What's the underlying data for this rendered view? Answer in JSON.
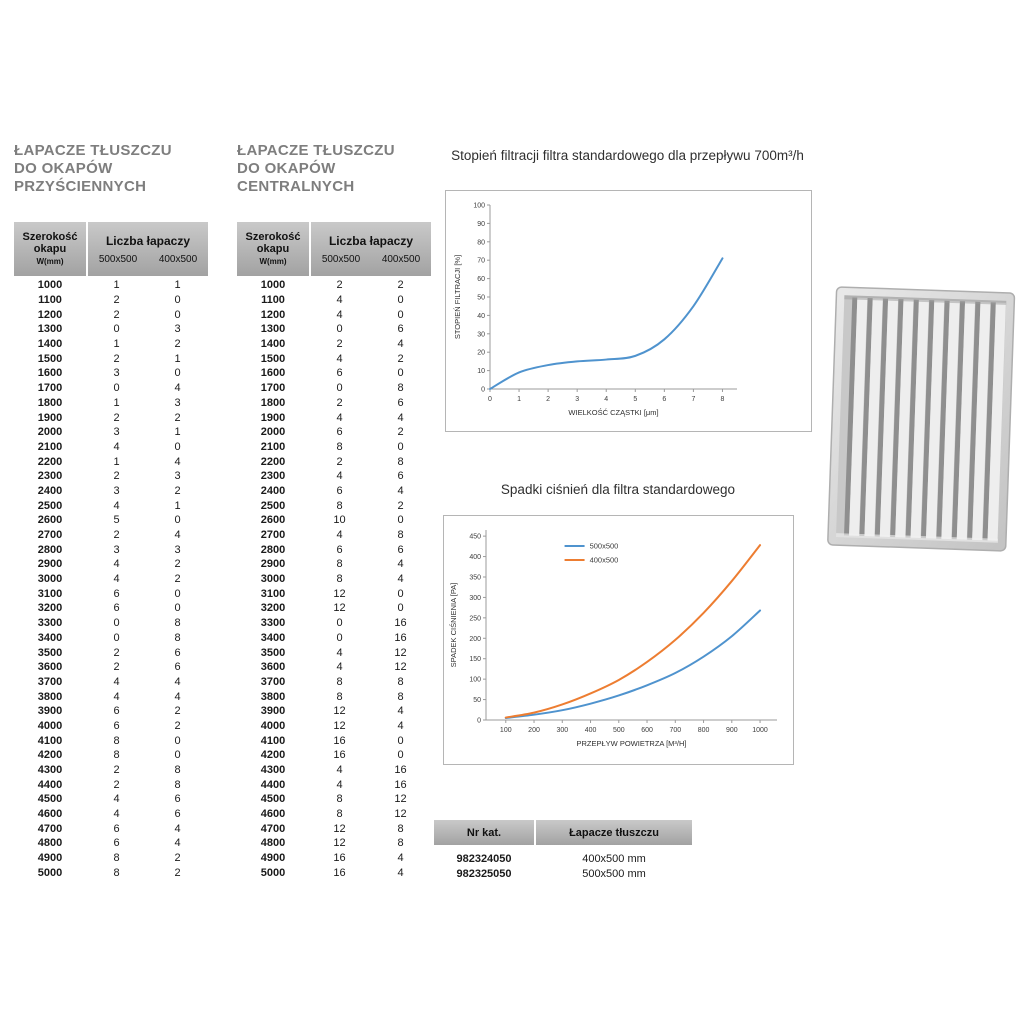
{
  "colors": {
    "blue": "#4f93ce",
    "orange": "#ed7d31",
    "header_grey_top": "#c9c9c9",
    "header_grey_bottom": "#a2a2a2",
    "title_grey": "#7e7e7e"
  },
  "tables": {
    "wall": {
      "title_lines": [
        "ŁAPACZE TŁUSZCZU",
        "DO OKAPÓW",
        "PRZYŚCIENNYCH"
      ],
      "header": {
        "col1_line1": "Szerokość",
        "col1_line2": "okapu",
        "col1_unit": "W(mm)",
        "group": "Liczba łapaczy",
        "size1": "500x500",
        "size2": "400x500"
      },
      "rows": [
        [
          1000,
          1,
          1
        ],
        [
          1100,
          2,
          0
        ],
        [
          1200,
          2,
          0
        ],
        [
          1300,
          0,
          3
        ],
        [
          1400,
          1,
          2
        ],
        [
          1500,
          2,
          1
        ],
        [
          1600,
          3,
          0
        ],
        [
          1700,
          0,
          4
        ],
        [
          1800,
          1,
          3
        ],
        [
          1900,
          2,
          2
        ],
        [
          2000,
          3,
          1
        ],
        [
          2100,
          4,
          0
        ],
        [
          2200,
          1,
          4
        ],
        [
          2300,
          2,
          3
        ],
        [
          2400,
          3,
          2
        ],
        [
          2500,
          4,
          1
        ],
        [
          2600,
          5,
          0
        ],
        [
          2700,
          2,
          4
        ],
        [
          2800,
          3,
          3
        ],
        [
          2900,
          4,
          2
        ],
        [
          3000,
          4,
          2
        ],
        [
          3100,
          6,
          0
        ],
        [
          3200,
          6,
          0
        ],
        [
          3300,
          0,
          8
        ],
        [
          3400,
          0,
          8
        ],
        [
          3500,
          2,
          6
        ],
        [
          3600,
          2,
          6
        ],
        [
          3700,
          4,
          4
        ],
        [
          3800,
          4,
          4
        ],
        [
          3900,
          6,
          2
        ],
        [
          4000,
          6,
          2
        ],
        [
          4100,
          8,
          0
        ],
        [
          4200,
          8,
          0
        ],
        [
          4300,
          2,
          8
        ],
        [
          4400,
          2,
          8
        ],
        [
          4500,
          4,
          6
        ],
        [
          4600,
          4,
          6
        ],
        [
          4700,
          6,
          4
        ],
        [
          4800,
          6,
          4
        ],
        [
          4900,
          8,
          2
        ],
        [
          5000,
          8,
          2
        ]
      ]
    },
    "central": {
      "title_lines": [
        "ŁAPACZE TŁUSZCZU",
        "DO OKAPÓW",
        "CENTRALNYCH"
      ],
      "header": {
        "col1_line1": "Szerokość",
        "col1_line2": "okapu",
        "col1_unit": "W(mm)",
        "group": "Liczba łapaczy",
        "size1": "500x500",
        "size2": "400x500"
      },
      "rows": [
        [
          1000,
          2,
          2
        ],
        [
          1100,
          4,
          0
        ],
        [
          1200,
          4,
          0
        ],
        [
          1300,
          0,
          6
        ],
        [
          1400,
          2,
          4
        ],
        [
          1500,
          4,
          2
        ],
        [
          1600,
          6,
          0
        ],
        [
          1700,
          0,
          8
        ],
        [
          1800,
          2,
          6
        ],
        [
          1900,
          4,
          4
        ],
        [
          2000,
          6,
          2
        ],
        [
          2100,
          8,
          0
        ],
        [
          2200,
          2,
          8
        ],
        [
          2300,
          4,
          6
        ],
        [
          2400,
          6,
          4
        ],
        [
          2500,
          8,
          2
        ],
        [
          2600,
          10,
          0
        ],
        [
          2700,
          4,
          8
        ],
        [
          2800,
          6,
          6
        ],
        [
          2900,
          8,
          4
        ],
        [
          3000,
          8,
          4
        ],
        [
          3100,
          12,
          0
        ],
        [
          3200,
          12,
          0
        ],
        [
          3300,
          0,
          16
        ],
        [
          3400,
          0,
          16
        ],
        [
          3500,
          4,
          12
        ],
        [
          3600,
          4,
          12
        ],
        [
          3700,
          8,
          8
        ],
        [
          3800,
          8,
          8
        ],
        [
          3900,
          12,
          4
        ],
        [
          4000,
          12,
          4
        ],
        [
          4100,
          16,
          0
        ],
        [
          4200,
          16,
          0
        ],
        [
          4300,
          4,
          16
        ],
        [
          4400,
          4,
          16
        ],
        [
          4500,
          8,
          12
        ],
        [
          4600,
          8,
          12
        ],
        [
          4700,
          12,
          8
        ],
        [
          4800,
          12,
          8
        ],
        [
          4900,
          16,
          4
        ],
        [
          5000,
          16,
          4
        ]
      ]
    }
  },
  "chart_data": [
    {
      "type": "line",
      "name": "filtration",
      "title": "Stopień filtracji filtra standardowego dla przepływu 700m³/h",
      "xlabel": "WIELKOŚĆ CZĄSTKI [μm]",
      "ylabel": "STOPIEŃ FILTRACJI [%]",
      "x": [
        0,
        1,
        2,
        3,
        4,
        5,
        6,
        7,
        8
      ],
      "xticks": [
        0,
        1,
        2,
        3,
        4,
        5,
        6,
        7,
        8
      ],
      "yticks": [
        0,
        10,
        20,
        30,
        40,
        50,
        60,
        70,
        80,
        90,
        100
      ],
      "xlim": [
        0,
        8.5
      ],
      "ylim": [
        0,
        100
      ],
      "grid": false,
      "legend": false,
      "series": [
        {
          "name": "standard",
          "color": "#4f93ce",
          "values": [
            0,
            9,
            13,
            15,
            16,
            18,
            27,
            45,
            71
          ]
        }
      ]
    },
    {
      "type": "line",
      "name": "pressure",
      "title": "Spadki ciśnień dla filtra standardowego",
      "xlabel": "PRZEPŁYW POWIETRZA [M³/H]",
      "ylabel": "SPADEK CIŚNIENIA [PA]",
      "x": [
        100,
        200,
        300,
        400,
        500,
        600,
        700,
        800,
        900,
        1000
      ],
      "xticks": [
        100,
        200,
        300,
        400,
        500,
        600,
        700,
        800,
        900,
        1000
      ],
      "yticks": [
        0,
        50,
        100,
        150,
        200,
        250,
        300,
        350,
        400,
        450
      ],
      "xlim": [
        30,
        1060
      ],
      "ylim": [
        0,
        465
      ],
      "grid": false,
      "legend": true,
      "series": [
        {
          "name": "500x500",
          "color": "#4f93ce",
          "values": [
            5,
            13,
            24,
            40,
            60,
            85,
            115,
            155,
            205,
            268
          ]
        },
        {
          "name": "400x500",
          "color": "#ed7d31",
          "values": [
            6,
            18,
            38,
            65,
            98,
            142,
            196,
            262,
            340,
            428
          ]
        }
      ]
    }
  ],
  "catalog_table": {
    "headers": [
      "Nr kat.",
      "Łapacze tłuszczu"
    ],
    "rows": [
      [
        "982324050",
        "400x500 mm"
      ],
      [
        "982325050",
        "500x500 mm"
      ]
    ]
  }
}
